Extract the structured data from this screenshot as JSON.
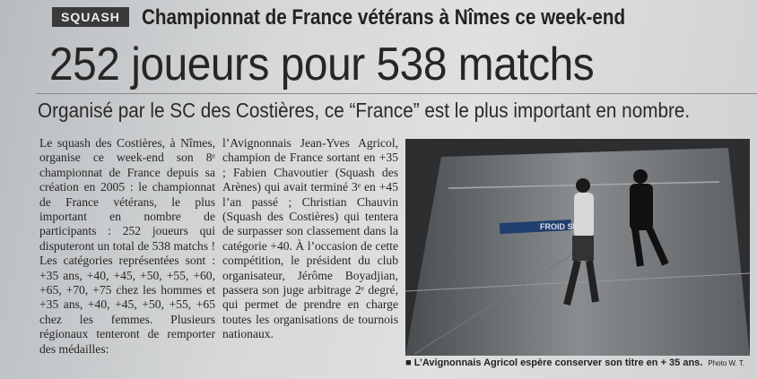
{
  "header": {
    "section": "SQUASH",
    "kicker": "Championnat de France vétérans à Nîmes ce week-end",
    "title": "252 joueurs pour 538 matchs",
    "standfirst": "Organisé par le SC des Costières, ce “France” est le plus important en nombre."
  },
  "body": {
    "columns": [
      "Le squash des Costières, à Nîmes, organise ce week-end son 8ᵉ championnat de France depuis sa création en 2005 : le championnat de France vétérans, le plus important en nombre de participants : 252 joueurs qui disputeront un total de 538 matchs ! Les catégories représentées sont : +35 ans, +40, +45, +50, +55, +60, +65, +70, +75 chez les hommes et +35 ans, +40, +45, +50, +55, +65 chez les femmes. Plusieurs régionaux tenteront de remporter des médailles:",
      "l’Avignonnais Jean-Yves Agricol, champion de France sortant en +35 ; Fabien Chavoutier (Squash des Arènes) qui avait terminé 3ᵉ en +45 l’an passé ; Christian Chauvin (Squash des Costières) qui tentera de surpasser son classement dans la catégorie +40. À l’occasion de cette compétition, le président du club organisateur, Jérôme Boyadjian, passera son juge arbitrage 2ᵉ degré, qui permet de prendre en charge toutes les organisations de tournois nationaux."
    ]
  },
  "photo": {
    "wall_text": "FROID SUD",
    "caption": "■ L’Avignonnais Agricol espère conserver son titre en + 35 ans.",
    "credit": "Photo W. T."
  }
}
